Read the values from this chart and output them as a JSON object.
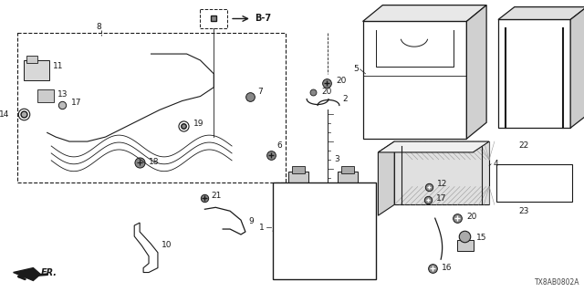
{
  "bg_color": "#ffffff",
  "diagram_code": "TX8AB0802A",
  "line_color": "#1a1a1a",
  "font_size": 6.5,
  "fig_w": 6.4,
  "fig_h": 3.2
}
